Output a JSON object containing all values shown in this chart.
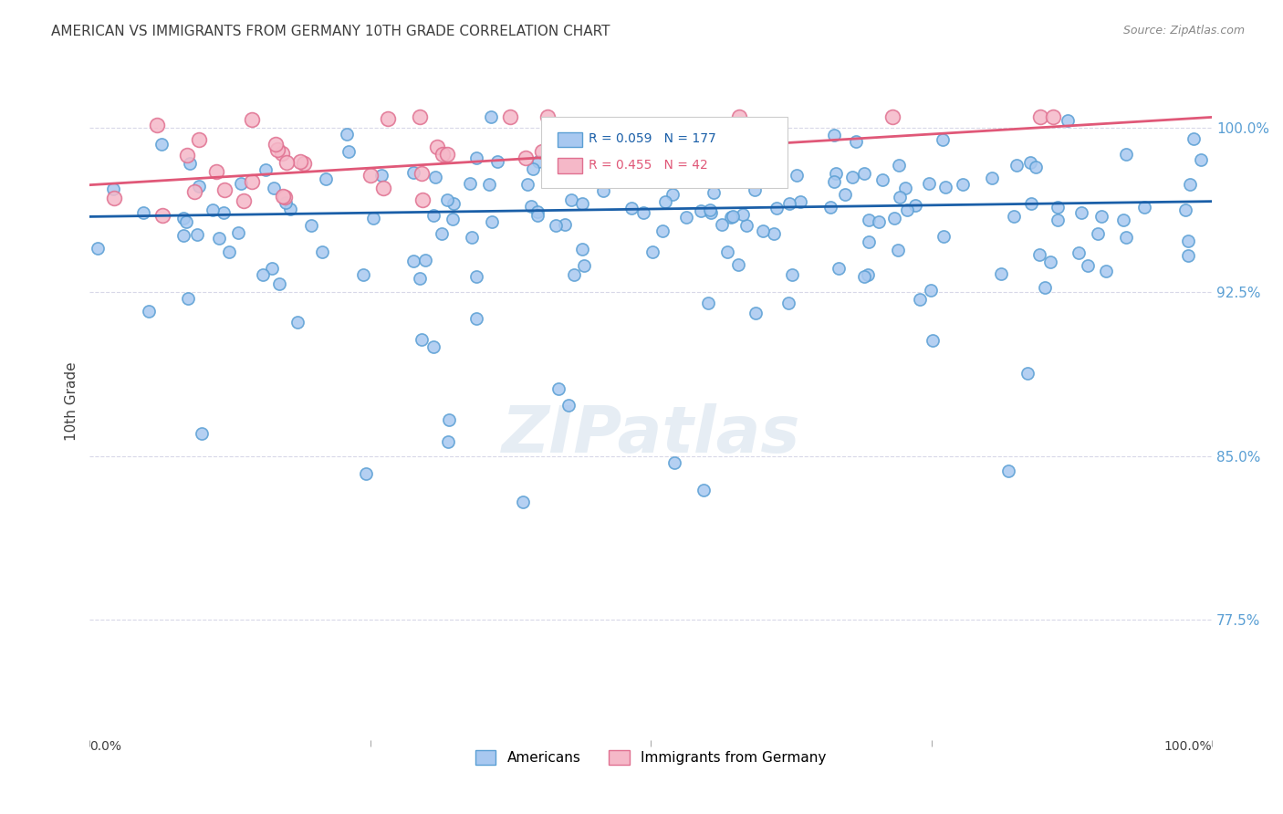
{
  "title": "AMERICAN VS IMMIGRANTS FROM GERMANY 10TH GRADE CORRELATION CHART",
  "source": "Source: ZipAtlas.com",
  "ylabel": "10th Grade",
  "ytick_labels": [
    "77.5%",
    "85.0%",
    "92.5%",
    "100.0%"
  ],
  "ytick_values": [
    0.775,
    0.85,
    0.925,
    1.0
  ],
  "xlim": [
    0.0,
    1.0
  ],
  "ylim": [
    0.72,
    1.03
  ],
  "legend_blue_label": "Americans",
  "legend_pink_label": "Immigrants from Germany",
  "r_blue": 0.059,
  "n_blue": 177,
  "r_pink": 0.455,
  "n_pink": 42,
  "blue_color": "#a8c8f0",
  "blue_edge": "#5a9fd4",
  "blue_line_color": "#1a5fa8",
  "pink_color": "#f5b8c8",
  "pink_edge": "#e07090",
  "pink_line_color": "#e05878",
  "background_color": "#ffffff",
  "grid_color": "#d8d8e8",
  "title_color": "#404040",
  "axis_label_color": "#404040",
  "tick_label_color_right": "#5a9fd4",
  "watermark": "ZIPatlas",
  "blue_trendline_x": [
    0.0,
    1.0
  ],
  "blue_trendline_y": [
    0.9595,
    0.9665
  ],
  "pink_trendline_x": [
    0.0,
    1.0
  ],
  "pink_trendline_y": [
    0.974,
    1.005
  ]
}
